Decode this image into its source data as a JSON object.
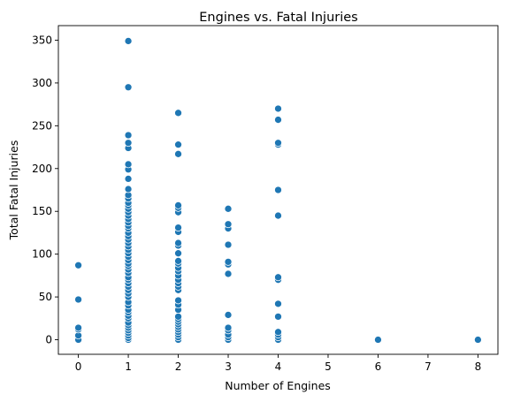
{
  "chart_data": {
    "type": "scatter",
    "title": "Engines vs. Fatal Injuries",
    "xlabel": "Number of Engines",
    "ylabel": "Total Fatal Injuries",
    "xlim": [
      -0.4,
      8.4
    ],
    "ylim": [
      -17,
      367
    ],
    "xticks": [
      0,
      1,
      2,
      3,
      4,
      5,
      6,
      7,
      8
    ],
    "yticks": [
      0,
      50,
      100,
      150,
      200,
      250,
      300,
      350
    ],
    "grid": false,
    "point_color": "#1f77b4",
    "points": [
      [
        0,
        0
      ],
      [
        0,
        5
      ],
      [
        0,
        12
      ],
      [
        0,
        14
      ],
      [
        0,
        47
      ],
      [
        0,
        87
      ],
      [
        1,
        0
      ],
      [
        1,
        2
      ],
      [
        1,
        5
      ],
      [
        1,
        8
      ],
      [
        1,
        11
      ],
      [
        1,
        14
      ],
      [
        1,
        17
      ],
      [
        1,
        20
      ],
      [
        1,
        25
      ],
      [
        1,
        28
      ],
      [
        1,
        32
      ],
      [
        1,
        35
      ],
      [
        1,
        40
      ],
      [
        1,
        44
      ],
      [
        1,
        50
      ],
      [
        1,
        54
      ],
      [
        1,
        58
      ],
      [
        1,
        62
      ],
      [
        1,
        66
      ],
      [
        1,
        70
      ],
      [
        1,
        73
      ],
      [
        1,
        78
      ],
      [
        1,
        82
      ],
      [
        1,
        86
      ],
      [
        1,
        89
      ],
      [
        1,
        93
      ],
      [
        1,
        97
      ],
      [
        1,
        101
      ],
      [
        1,
        105
      ],
      [
        1,
        109
      ],
      [
        1,
        113
      ],
      [
        1,
        117
      ],
      [
        1,
        121
      ],
      [
        1,
        125
      ],
      [
        1,
        130
      ],
      [
        1,
        133
      ],
      [
        1,
        137
      ],
      [
        1,
        141
      ],
      [
        1,
        145
      ],
      [
        1,
        149
      ],
      [
        1,
        153
      ],
      [
        1,
        157
      ],
      [
        1,
        160
      ],
      [
        1,
        165
      ],
      [
        1,
        169
      ],
      [
        1,
        176
      ],
      [
        1,
        188
      ],
      [
        1,
        199
      ],
      [
        1,
        205
      ],
      [
        1,
        224
      ],
      [
        1,
        230
      ],
      [
        1,
        239
      ],
      [
        1,
        295
      ],
      [
        1,
        349
      ],
      [
        2,
        0
      ],
      [
        2,
        3
      ],
      [
        2,
        6
      ],
      [
        2,
        9
      ],
      [
        2,
        12
      ],
      [
        2,
        15
      ],
      [
        2,
        18
      ],
      [
        2,
        21
      ],
      [
        2,
        24
      ],
      [
        2,
        27
      ],
      [
        2,
        35
      ],
      [
        2,
        41
      ],
      [
        2,
        46
      ],
      [
        2,
        58
      ],
      [
        2,
        62
      ],
      [
        2,
        66
      ],
      [
        2,
        70
      ],
      [
        2,
        75
      ],
      [
        2,
        80
      ],
      [
        2,
        84
      ],
      [
        2,
        89
      ],
      [
        2,
        92
      ],
      [
        2,
        101
      ],
      [
        2,
        110
      ],
      [
        2,
        113
      ],
      [
        2,
        126
      ],
      [
        2,
        131
      ],
      [
        2,
        149
      ],
      [
        2,
        154
      ],
      [
        2,
        157
      ],
      [
        2,
        217
      ],
      [
        2,
        228
      ],
      [
        2,
        265
      ],
      [
        3,
        0
      ],
      [
        3,
        3
      ],
      [
        3,
        6
      ],
      [
        3,
        11
      ],
      [
        3,
        14
      ],
      [
        3,
        29
      ],
      [
        3,
        77
      ],
      [
        3,
        88
      ],
      [
        3,
        91
      ],
      [
        3,
        111
      ],
      [
        3,
        130
      ],
      [
        3,
        135
      ],
      [
        3,
        153
      ],
      [
        4,
        0
      ],
      [
        4,
        3
      ],
      [
        4,
        6
      ],
      [
        4,
        9
      ],
      [
        4,
        27
      ],
      [
        4,
        42
      ],
      [
        4,
        70
      ],
      [
        4,
        73
      ],
      [
        4,
        145
      ],
      [
        4,
        175
      ],
      [
        4,
        228
      ],
      [
        4,
        230
      ],
      [
        4,
        257
      ],
      [
        4,
        270
      ],
      [
        6,
        0
      ],
      [
        8,
        0
      ]
    ]
  }
}
